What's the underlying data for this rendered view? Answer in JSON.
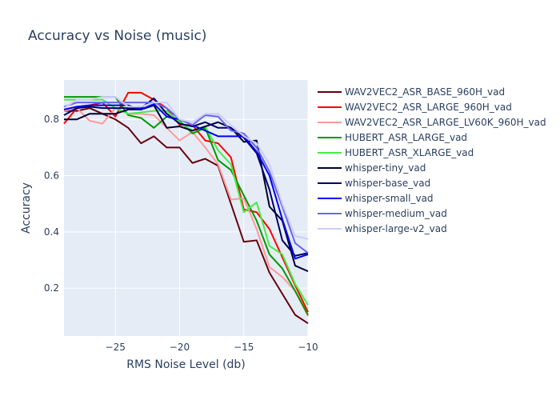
{
  "chart_data": {
    "type": "line",
    "title": "Accuracy vs Noise (music)",
    "xlabel": "RMS Noise Level (db)",
    "ylabel": "Accuracy",
    "xlim": [
      -29,
      -10
    ],
    "ylim": [
      0.03,
      0.94
    ],
    "xticks": [
      -25,
      -20,
      -15,
      -10
    ],
    "xtick_labels": [
      "−25",
      "−20",
      "−15",
      "−10"
    ],
    "yticks": [
      0.2,
      0.4,
      0.6,
      0.8
    ],
    "ytick_labels": [
      "0.2",
      "0.4",
      "0.6",
      "0.8"
    ],
    "grid": true,
    "plot_bgcolor": "#e5ecf6",
    "legend_position": "right",
    "x": [
      -29,
      -28,
      -27,
      -26,
      -25,
      -24,
      -23,
      -22,
      -21,
      -20,
      -19,
      -18,
      -17,
      -16,
      -15,
      -14,
      -13,
      -12,
      -11,
      -10
    ],
    "series": [
      {
        "name": "WAV2VEC2_ASR_BASE_960H_vad",
        "color": "#67000d",
        "values": [
          0.83,
          0.83,
          0.84,
          0.82,
          0.8,
          0.77,
          0.715,
          0.74,
          0.7,
          0.7,
          0.645,
          0.66,
          0.635,
          0.5,
          0.365,
          0.37,
          0.255,
          0.18,
          0.105,
          0.075
        ]
      },
      {
        "name": "WAV2VEC2_ASR_LARGE_960H_vad",
        "color": "#ff0000",
        "values": [
          0.785,
          0.84,
          0.85,
          0.86,
          0.81,
          0.895,
          0.895,
          0.87,
          0.84,
          0.78,
          0.78,
          0.725,
          0.715,
          0.665,
          0.48,
          0.47,
          0.41,
          0.31,
          0.21,
          0.115
        ]
      },
      {
        "name": "WAV2VEC2_ASR_LARGE_LV60K_960H_vad",
        "color": "#ff9999",
        "values": [
          0.83,
          0.84,
          0.795,
          0.785,
          0.84,
          0.82,
          0.82,
          0.815,
          0.77,
          0.725,
          0.755,
          0.7,
          0.64,
          0.515,
          0.52,
          0.41,
          0.275,
          0.24,
          0.19,
          0.1
        ]
      },
      {
        "name": "HUBERT_ASR_LARGE_vad",
        "color": "#009900",
        "values": [
          0.88,
          0.88,
          0.88,
          0.88,
          0.88,
          0.815,
          0.805,
          0.77,
          0.81,
          0.795,
          0.75,
          0.77,
          0.655,
          0.62,
          0.53,
          0.44,
          0.32,
          0.27,
          0.19,
          0.105
        ]
      },
      {
        "name": "HUBERT_ASR_XLARGE_vad",
        "color": "#44ee44",
        "values": [
          0.87,
          0.87,
          0.87,
          0.87,
          0.84,
          0.82,
          0.825,
          0.83,
          0.83,
          0.79,
          0.76,
          0.775,
          0.69,
          0.64,
          0.47,
          0.505,
          0.35,
          0.32,
          0.215,
          0.14
        ]
      },
      {
        "name": "whisper-tiny_vad",
        "color": "#000033",
        "values": [
          0.8,
          0.8,
          0.82,
          0.82,
          0.82,
          0.835,
          0.835,
          0.85,
          0.77,
          0.775,
          0.76,
          0.775,
          0.79,
          0.77,
          0.72,
          0.725,
          0.49,
          0.44,
          0.28,
          0.26
        ]
      },
      {
        "name": "whisper-base_vad",
        "color": "#000066",
        "values": [
          0.815,
          0.84,
          0.845,
          0.84,
          0.84,
          0.84,
          0.84,
          0.875,
          0.82,
          0.785,
          0.775,
          0.79,
          0.77,
          0.77,
          0.735,
          0.68,
          0.55,
          0.37,
          0.315,
          0.325
        ]
      },
      {
        "name": "whisper-small_vad",
        "color": "#0000ee",
        "values": [
          0.835,
          0.845,
          0.85,
          0.85,
          0.85,
          0.85,
          0.835,
          0.855,
          0.81,
          0.8,
          0.78,
          0.76,
          0.74,
          0.74,
          0.74,
          0.685,
          0.6,
          0.445,
          0.305,
          0.32
        ]
      },
      {
        "name": "whisper-medium_vad",
        "color": "#6666ee",
        "values": [
          0.845,
          0.86,
          0.86,
          0.86,
          0.86,
          0.86,
          0.86,
          0.86,
          0.84,
          0.8,
          0.78,
          0.815,
          0.81,
          0.76,
          0.75,
          0.7,
          0.615,
          0.49,
          0.36,
          0.325
        ]
      },
      {
        "name": "whisper-large-v2_vad",
        "color": "#ccccff",
        "values": [
          0.84,
          0.87,
          0.87,
          0.88,
          0.88,
          0.845,
          0.845,
          0.86,
          0.86,
          0.8,
          0.79,
          0.82,
          0.82,
          0.78,
          0.74,
          0.715,
          0.64,
          0.5,
          0.385,
          0.375
        ]
      }
    ]
  }
}
